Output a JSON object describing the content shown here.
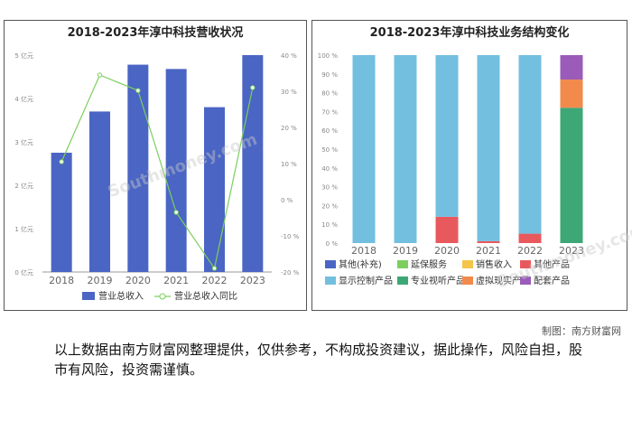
{
  "chart_data": [
    {
      "type": "bar+line",
      "title": "2018-2023年淳中科技营收状况",
      "categories": [
        "2018",
        "2019",
        "2020",
        "2021",
        "2022",
        "2023"
      ],
      "bar_series": {
        "name": "营业总收入",
        "values": [
          2.75,
          3.7,
          4.78,
          4.68,
          3.8,
          5.0
        ],
        "color": "#4a65c4"
      },
      "line_series": {
        "name": "营业总收入同比",
        "values": [
          10.5,
          34.5,
          30.2,
          -3.5,
          -19.0,
          31.0
        ],
        "color": "#7ccf5e"
      },
      "left_axis": {
        "ticks": [
          "0 亿元",
          "1 亿元",
          "2 亿元",
          "3 亿元",
          "4 亿元",
          "5 亿元"
        ],
        "min": 0,
        "max": 5
      },
      "right_axis": {
        "ticks": [
          "-20 %",
          "-10 %",
          "0 %",
          "10 %",
          "20 %",
          "30 %",
          "40 %"
        ],
        "min": -20,
        "max": 40
      },
      "legend_position": "bottom",
      "grid": false
    },
    {
      "type": "stacked-bar-percent",
      "title": "2018-2023年淳中科技业务结构变化",
      "categories": [
        "2018",
        "2019",
        "2020",
        "2021",
        "2022",
        "2023"
      ],
      "y_ticks": [
        "0 %",
        "10 %",
        "20 %",
        "30 %",
        "40 %",
        "50 %",
        "60 %",
        "70 %",
        "80 %",
        "90 %",
        "100 %"
      ],
      "series": [
        {
          "name": "其他(补充)",
          "color": "#4a65c4",
          "values": [
            0,
            0,
            0,
            0,
            0,
            0
          ]
        },
        {
          "name": "延保服务",
          "color": "#7ccf5e",
          "values": [
            0,
            0,
            0,
            0,
            0,
            0
          ]
        },
        {
          "name": "销售收入",
          "color": "#f3c54a",
          "values": [
            0,
            0,
            0,
            0,
            0,
            0
          ]
        },
        {
          "name": "其他产品",
          "color": "#e8595e",
          "values": [
            0,
            0,
            14,
            1,
            5,
            0
          ]
        },
        {
          "name": "显示控制产品",
          "color": "#73bfe0",
          "values": [
            100,
            100,
            86,
            99,
            95,
            0
          ]
        },
        {
          "name": "专业视听产品",
          "color": "#3ea776",
          "values": [
            0,
            0,
            0,
            0,
            0,
            72
          ]
        },
        {
          "name": "虚拟现实产品",
          "color": "#f28a4c",
          "values": [
            0,
            0,
            0,
            0,
            0,
            15
          ]
        },
        {
          "name": "配套产品",
          "color": "#9a5cb8",
          "values": [
            0,
            0,
            0,
            0,
            0,
            13
          ]
        }
      ],
      "legend_position": "bottom"
    }
  ],
  "watermark": {
    "text": "南方财富网",
    "latin": "Southmoney.com"
  },
  "credit": "制图：南方财富网",
  "disclaimer": "以上数据由南方财富网整理提供，仅供参考，不构成投资建议，据此操作，风险自担，股市有风险，投资需谨慎。"
}
